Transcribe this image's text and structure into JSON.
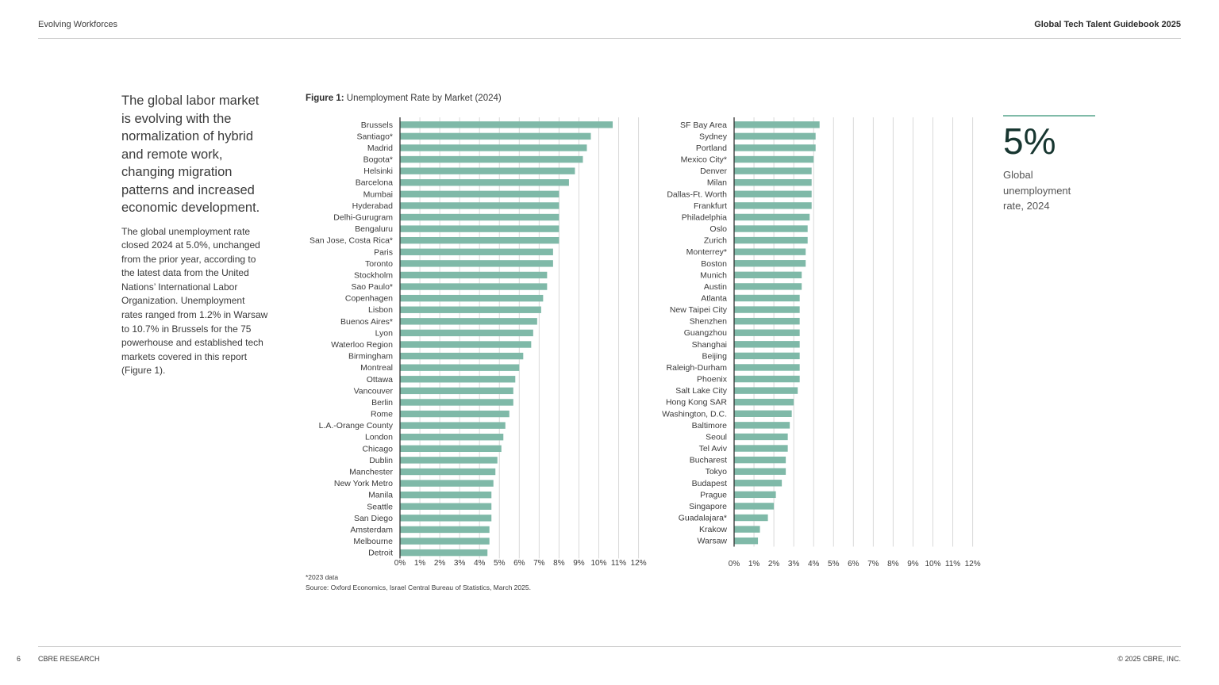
{
  "header": {
    "section": "Evolving Workforces",
    "publication": "Global Tech Talent Guidebook 2025"
  },
  "footer": {
    "page_number": "6",
    "brand": "CBRE RESEARCH",
    "copyright": "© 2025 CBRE, INC."
  },
  "intro": {
    "headline": "The global labor market is evolving with the normalization of hybrid and remote work, changing migration patterns and increased economic development.",
    "body": "The global unemployment rate closed 2024 at 5.0%, unchanged from the prior year, according to the latest data from the United Nations’ International Labor Organization. Unemployment rates ranged from 1.2% in Warsaw to 10.7% in Brussels for the 75 powerhouse and established tech markets covered in this report (Figure 1)."
  },
  "figure": {
    "label": "Figure 1:",
    "title": "Unemployment Rate by Market (2024)",
    "note": "*2023 data",
    "source": "Source: Oxford Economics, Israel Central Bureau of Statistics, March 2025."
  },
  "callout": {
    "value": "5%",
    "caption": "Global unemployment rate, 2024"
  },
  "colors": {
    "bar": "#7fb9a8",
    "grid": "#d9d9d9",
    "axis": "#333333",
    "accent_rule": "#80bba8",
    "stat_text": "#173630"
  },
  "chart_data": [
    {
      "type": "bar",
      "orientation": "horizontal",
      "xlim": [
        0,
        12
      ],
      "ticks": [
        "0%",
        "1%",
        "2%",
        "3%",
        "4%",
        "5%",
        "6%",
        "7%",
        "8%",
        "9%",
        "10%",
        "11%",
        "12%"
      ],
      "grid": true,
      "categories": [
        "Brussels",
        "Santiago*",
        "Madrid",
        "Bogota*",
        "Helsinki",
        "Barcelona",
        "Mumbai",
        "Hyderabad",
        "Delhi-Gurugram",
        "Bengaluru",
        "San Jose, Costa Rica*",
        "Paris",
        "Toronto",
        "Stockholm",
        "Sao Paulo*",
        "Copenhagen",
        "Lisbon",
        "Buenos Aires*",
        "Lyon",
        "Waterloo Region",
        "Birmingham",
        "Montreal",
        "Ottawa",
        "Vancouver",
        "Berlin",
        "Rome",
        "L.A.-Orange County",
        "London",
        "Chicago",
        "Dublin",
        "Manchester",
        "New York Metro",
        "Manila",
        "Seattle",
        "San Diego",
        "Amsterdam",
        "Melbourne",
        "Detroit"
      ],
      "values": [
        10.7,
        9.6,
        9.4,
        9.2,
        8.8,
        8.5,
        8.0,
        8.0,
        8.0,
        8.0,
        8.0,
        7.7,
        7.7,
        7.4,
        7.4,
        7.2,
        7.1,
        6.9,
        6.7,
        6.6,
        6.2,
        6.0,
        5.8,
        5.7,
        5.7,
        5.5,
        5.3,
        5.2,
        5.1,
        4.9,
        4.8,
        4.7,
        4.6,
        4.6,
        4.6,
        4.5,
        4.5,
        4.4
      ]
    },
    {
      "type": "bar",
      "orientation": "horizontal",
      "xlim": [
        0,
        12
      ],
      "ticks": [
        "0%",
        "1%",
        "2%",
        "3%",
        "4%",
        "5%",
        "6%",
        "7%",
        "8%",
        "9%",
        "10%",
        "11%",
        "12%"
      ],
      "grid": true,
      "categories": [
        "SF Bay Area",
        "Sydney",
        "Portland",
        "Mexico City*",
        "Denver",
        "Milan",
        "Dallas-Ft. Worth",
        "Frankfurt",
        "Philadelphia",
        "Oslo",
        "Zurich",
        "Monterrey*",
        "Boston",
        "Munich",
        "Austin",
        "Atlanta",
        "New Taipei City",
        "Shenzhen",
        "Guangzhou",
        "Shanghai",
        "Beijing",
        "Raleigh-Durham",
        "Phoenix",
        "Salt Lake City",
        "Hong Kong SAR",
        "Washington, D.C.",
        "Baltimore",
        "Seoul",
        "Tel Aviv",
        "Bucharest",
        "Tokyo",
        "Budapest",
        "Prague",
        "Singapore",
        "Guadalajara*",
        "Krakow",
        "Warsaw"
      ],
      "values": [
        4.3,
        4.1,
        4.1,
        4.0,
        3.9,
        3.9,
        3.9,
        3.9,
        3.8,
        3.7,
        3.7,
        3.6,
        3.6,
        3.4,
        3.4,
        3.3,
        3.3,
        3.3,
        3.3,
        3.3,
        3.3,
        3.3,
        3.3,
        3.2,
        3.0,
        2.9,
        2.8,
        2.7,
        2.7,
        2.6,
        2.6,
        2.4,
        2.1,
        2.0,
        1.7,
        1.3,
        1.2
      ]
    }
  ]
}
